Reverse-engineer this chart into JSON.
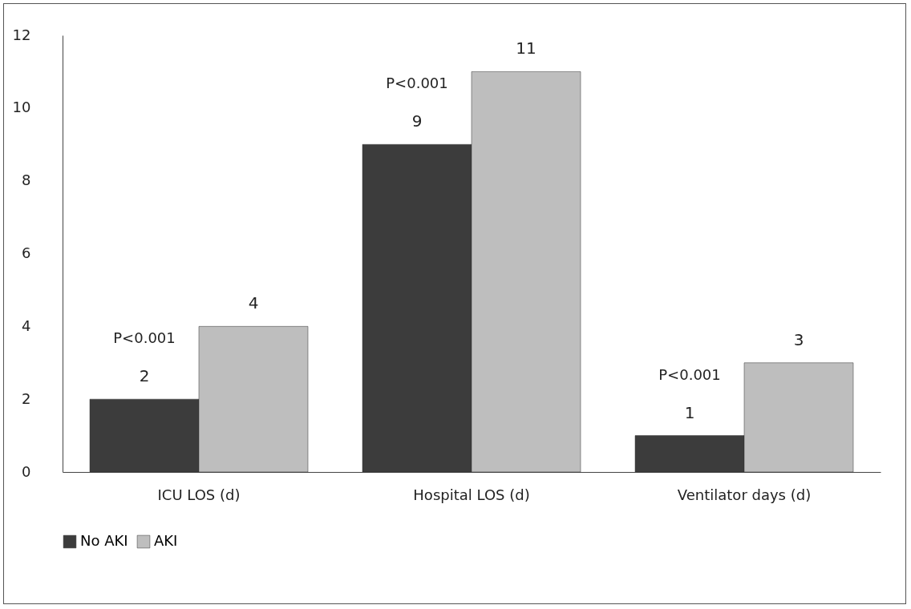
{
  "chart_data": {
    "type": "bar",
    "categories": [
      "ICU LOS (d)",
      "Hospital LOS (d)",
      "Ventilator days (d)"
    ],
    "series": [
      {
        "name": "No AKI",
        "color": "#3c3c3c",
        "values": [
          2,
          9,
          1
        ]
      },
      {
        "name": "AKI",
        "color": "#bebebe",
        "values": [
          4,
          11,
          3
        ]
      }
    ],
    "ylim": [
      0,
      12
    ],
    "yticks": [
      0,
      2,
      4,
      6,
      8,
      10,
      12
    ],
    "grid": false,
    "legend": "bottom",
    "data_labels": true,
    "annotations": [
      "P<0.001",
      "P<0.001",
      "P<0.001"
    ]
  }
}
